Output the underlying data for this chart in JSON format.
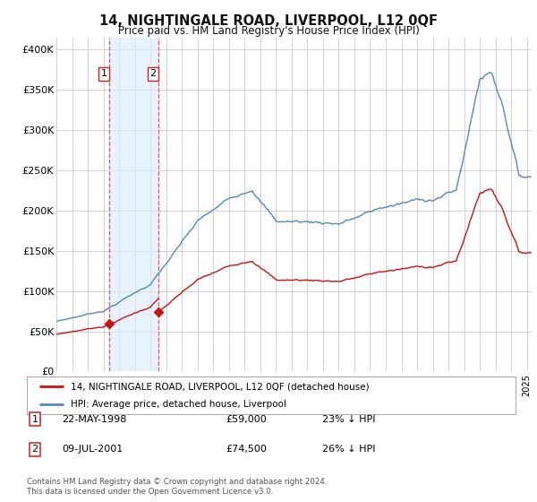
{
  "title": "14, NIGHTINGALE ROAD, LIVERPOOL, L12 0QF",
  "subtitle": "Price paid vs. HM Land Registry's House Price Index (HPI)",
  "sale1_year": 1998.38,
  "sale1_price": 59000,
  "sale1_label": "22-MAY-1998",
  "sale1_pct": "23% ↓ HPI",
  "sale2_year": 2001.52,
  "sale2_price": 74500,
  "sale2_label": "09-JUL-2001",
  "sale2_pct": "26% ↓ HPI",
  "hpi_color": "#5588bb",
  "price_color": "#cc1111",
  "vline_color": "#dd3333",
  "shade_color": "#ddeeff",
  "legend_label1": "14, NIGHTINGALE ROAD, LIVERPOOL, L12 0QF (detached house)",
  "legend_label2": "HPI: Average price, detached house, Liverpool",
  "footer": "Contains HM Land Registry data © Crown copyright and database right 2024.\nThis data is licensed under the Open Government Licence v3.0.",
  "yticks": [
    0,
    50000,
    100000,
    150000,
    200000,
    250000,
    300000,
    350000,
    400000
  ],
  "ylabels": [
    "£0",
    "£50K",
    "£100K",
    "£150K",
    "£200K",
    "£250K",
    "£300K",
    "£350K",
    "£400K"
  ],
  "ymax": 415000,
  "xmin": 1995.0,
  "xmax": 2025.3,
  "background_color": "#ffffff",
  "grid_color": "#cccccc"
}
